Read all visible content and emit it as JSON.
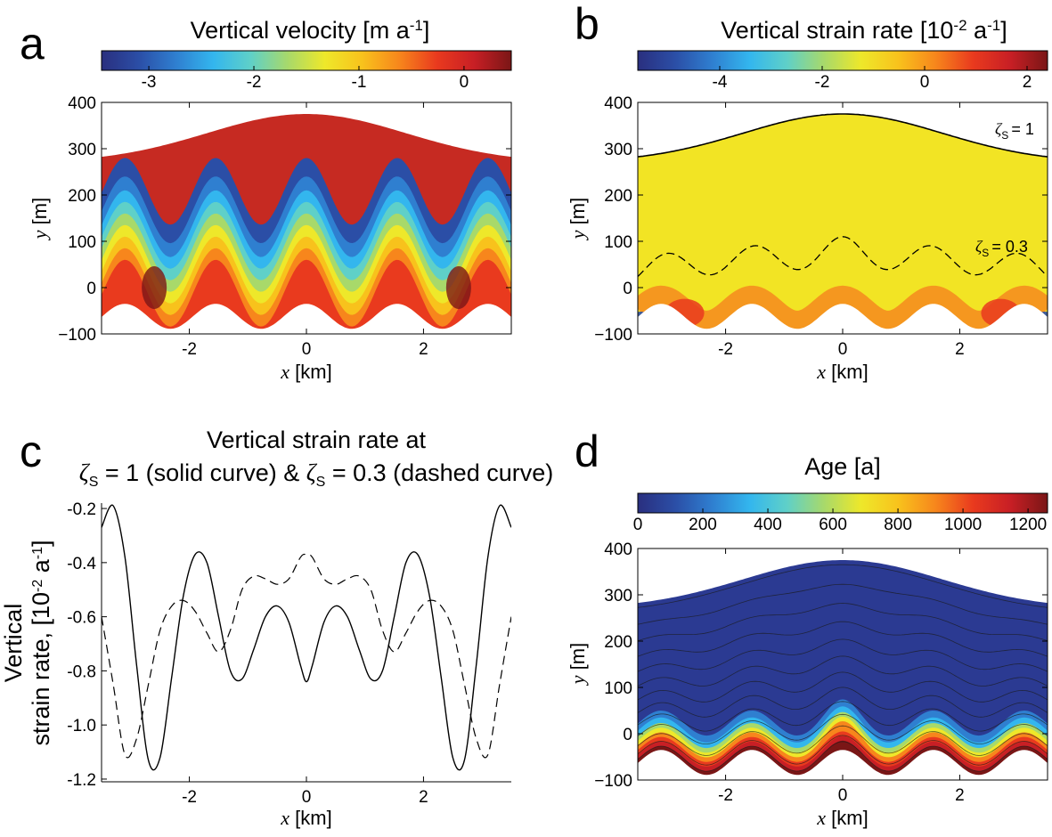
{
  "panel_labels": [
    "a",
    "b",
    "c",
    "d"
  ],
  "colormap": [
    "#2a2f7f",
    "#2b4ea6",
    "#2f7fd0",
    "#33b6ee",
    "#5fd0c8",
    "#a8d96a",
    "#eee82a",
    "#f8c21c",
    "#f7861c",
    "#e93a1e",
    "#c81f25",
    "#7a1616"
  ],
  "bed_color": "#ffffff",
  "chart_data": [
    {
      "type": "heatmap",
      "panel": "a",
      "title": "Vertical velocity [m a",
      "title_sup": "-1",
      "title_end": "]",
      "colorbar": {
        "range": [
          -3.45,
          0.45
        ],
        "ticks": [
          -3,
          -2,
          -1,
          0
        ]
      },
      "xlabel_var": "x",
      "xlabel_unit": " [km]",
      "ylabel_var": "y",
      "ylabel_unit": " [m]",
      "xlim": [
        -3.5,
        3.5
      ],
      "ylim": [
        -100,
        400
      ],
      "xticks": [
        -2,
        0,
        2
      ],
      "yticks": [
        -100,
        0,
        100,
        200,
        300,
        400
      ]
    },
    {
      "type": "heatmap",
      "panel": "b",
      "title": "Vertical strain rate [10",
      "title_sup1": "-2",
      "title_mid": " a",
      "title_sup2": "-1",
      "title_end": "]",
      "colorbar": {
        "range": [
          -5.6,
          2.4
        ],
        "ticks": [
          -4,
          -2,
          0,
          2
        ]
      },
      "xlabel_var": "x",
      "xlabel_unit": " [km]",
      "ylabel_var": "y",
      "ylabel_unit": " [m]",
      "xlim": [
        -3.5,
        3.5
      ],
      "ylim": [
        -100,
        400
      ],
      "xticks": [
        -2,
        0,
        2
      ],
      "yticks": [
        -100,
        0,
        100,
        200,
        300,
        400
      ],
      "annotations": [
        {
          "sym": "ζ",
          "sub": "S",
          "text": "= 1"
        },
        {
          "sym": "ζ",
          "sub": "S",
          "text": "= 0.3"
        }
      ]
    },
    {
      "type": "line",
      "panel": "c",
      "title_line1": "Vertical strain rate at",
      "title_line2": [
        {
          "sym": "ζ",
          "sub": "S",
          "text": " = 1 (solid curve) & "
        },
        {
          "sym": "ζ",
          "sub": "S",
          "text": " = 0.3 (dashed curve)"
        }
      ],
      "xlabel_var": "x",
      "xlabel_unit": " [km]",
      "ylabel_line1": "Vertical",
      "ylabel_line2": "strain rate, [10",
      "ylabel_sup1": "-2",
      "ylabel_mid": " a",
      "ylabel_sup2": "-1",
      "ylabel_end": "]",
      "xlim": [
        -3.5,
        3.5
      ],
      "ylim": [
        -1.21,
        -0.18
      ],
      "xticks": [
        -2,
        0,
        2
      ],
      "yticks": [
        -0.2,
        -0.4,
        -0.6,
        -0.8,
        -1.0,
        -1.2
      ],
      "ytick_labels": [
        "-0.2",
        "-0.4",
        "-0.6",
        "-0.8",
        "-1.0",
        "-1.2"
      ],
      "x": [
        -3.5,
        -3.3,
        -3.1,
        -2.9,
        -2.7,
        -2.5,
        -2.3,
        -2.1,
        -1.9,
        -1.7,
        -1.5,
        -1.3,
        -1.1,
        -0.9,
        -0.7,
        -0.5,
        -0.3,
        -0.1,
        0,
        0.1,
        0.3,
        0.5,
        0.7,
        0.9,
        1.1,
        1.3,
        1.5,
        1.7,
        1.9,
        2.1,
        2.3,
        2.5,
        2.7,
        2.9,
        3.1,
        3.3,
        3.5
      ],
      "series": [
        {
          "style": "solid",
          "values": [
            -0.27,
            -0.19,
            -0.38,
            -0.78,
            -1.13,
            -1.12,
            -0.82,
            -0.52,
            -0.37,
            -0.4,
            -0.6,
            -0.8,
            -0.83,
            -0.72,
            -0.6,
            -0.56,
            -0.62,
            -0.78,
            -0.84,
            -0.78,
            -0.62,
            -0.56,
            -0.6,
            -0.72,
            -0.83,
            -0.8,
            -0.6,
            -0.4,
            -0.37,
            -0.52,
            -0.82,
            -1.12,
            -1.13,
            -0.78,
            -0.38,
            -0.19,
            -0.27
          ]
        },
        {
          "style": "dashed",
          "values": [
            -0.6,
            -0.85,
            -1.11,
            -1.05,
            -0.85,
            -0.65,
            -0.56,
            -0.54,
            -0.58,
            -0.66,
            -0.73,
            -0.65,
            -0.5,
            -0.45,
            -0.46,
            -0.48,
            -0.46,
            -0.38,
            -0.37,
            -0.38,
            -0.46,
            -0.48,
            -0.46,
            -0.45,
            -0.5,
            -0.65,
            -0.73,
            -0.66,
            -0.58,
            -0.54,
            -0.56,
            -0.65,
            -0.85,
            -1.05,
            -1.11,
            -0.85,
            -0.6
          ]
        }
      ]
    },
    {
      "type": "heatmap",
      "panel": "d",
      "title": "Age [a]",
      "colorbar": {
        "range": [
          0,
          1260
        ],
        "ticks": [
          0,
          200,
          400,
          600,
          800,
          1000,
          1200
        ]
      },
      "xlabel_var": "x",
      "xlabel_unit": " [km]",
      "ylabel_var": "y",
      "ylabel_unit": " [m]",
      "xlim": [
        -3.5,
        3.5
      ],
      "ylim": [
        -100,
        400
      ],
      "xticks": [
        -2,
        0,
        2
      ],
      "yticks": [
        -100,
        0,
        100,
        200,
        300,
        400
      ]
    }
  ]
}
